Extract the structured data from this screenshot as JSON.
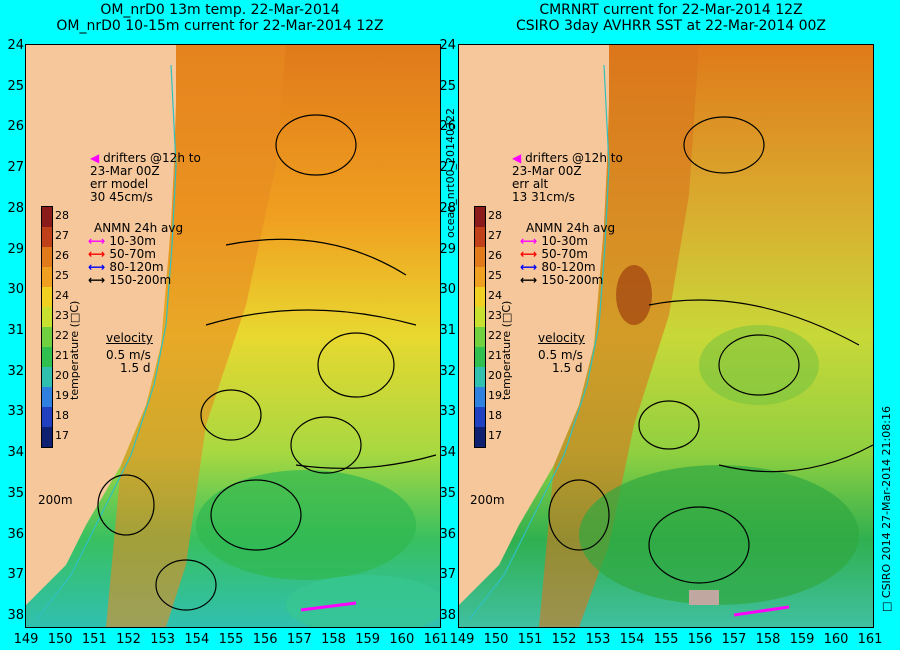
{
  "left_panel": {
    "title_line1": "OM_nrD0 13m temp. 22-Mar-2014",
    "title_line2": "OM_nrD0 10-15m current for 22-Mar-2014 12Z",
    "drifters": [
      "drifters @12h to",
      "23-Mar 00Z",
      "err model",
      "30 45cm/s"
    ],
    "anmn_title": "ANMN 24h avg",
    "anmn_items": [
      {
        "label": "10-30m",
        "color": "#ff00ff"
      },
      {
        "label": "50-70m",
        "color": "#ff0000"
      },
      {
        "label": "80-120m",
        "color": "#0000ff"
      },
      {
        "label": "150-200m",
        "color": "#000000"
      }
    ],
    "velocity_label": "velocity",
    "velocity_scale": [
      "0.5 m/s",
      "1.5 d"
    ],
    "isobath_label": "200m"
  },
  "right_panel": {
    "title_line1": "CMRNRT current for 22-Mar-2014 12Z",
    "title_line2": "CSIRO 3day AVHRR SST at 22-Mar-2014 00Z",
    "drifters": [
      "drifters @12h to",
      "23-Mar 00Z",
      "err alt",
      "13 31cm/s"
    ],
    "anmn_title": "ANMN 24h avg",
    "anmn_items": [
      {
        "label": "10-30m",
        "color": "#ff00ff"
      },
      {
        "label": "50-70m",
        "color": "#ff0000"
      },
      {
        "label": "80-120m",
        "color": "#0000ff"
      },
      {
        "label": "150-200m",
        "color": "#000000"
      }
    ],
    "velocity_label": "velocity",
    "velocity_scale": [
      "0.5 m/s",
      "1.5 d"
    ],
    "isobath_label": "200m"
  },
  "colorbar": {
    "label": "temperature (□C)",
    "ticks": [
      "28",
      "27",
      "26",
      "25",
      "24",
      "23",
      "22",
      "21",
      "20",
      "19",
      "18",
      "17"
    ]
  },
  "lat_ticks": [
    "24",
    "25",
    "26",
    "27",
    "28",
    "29",
    "30",
    "31",
    "32",
    "33",
    "34",
    "35",
    "36",
    "37",
    "38"
  ],
  "lon_ticks": [
    "149",
    "150",
    "151",
    "152",
    "153",
    "154",
    "155",
    "156",
    "157",
    "158",
    "159",
    "160",
    "161"
  ],
  "side_label_middle": "ocean_nrt00_20140322",
  "side_label_right": "□ CSIRO 2014   27-Mar-2014 21:08:16"
}
